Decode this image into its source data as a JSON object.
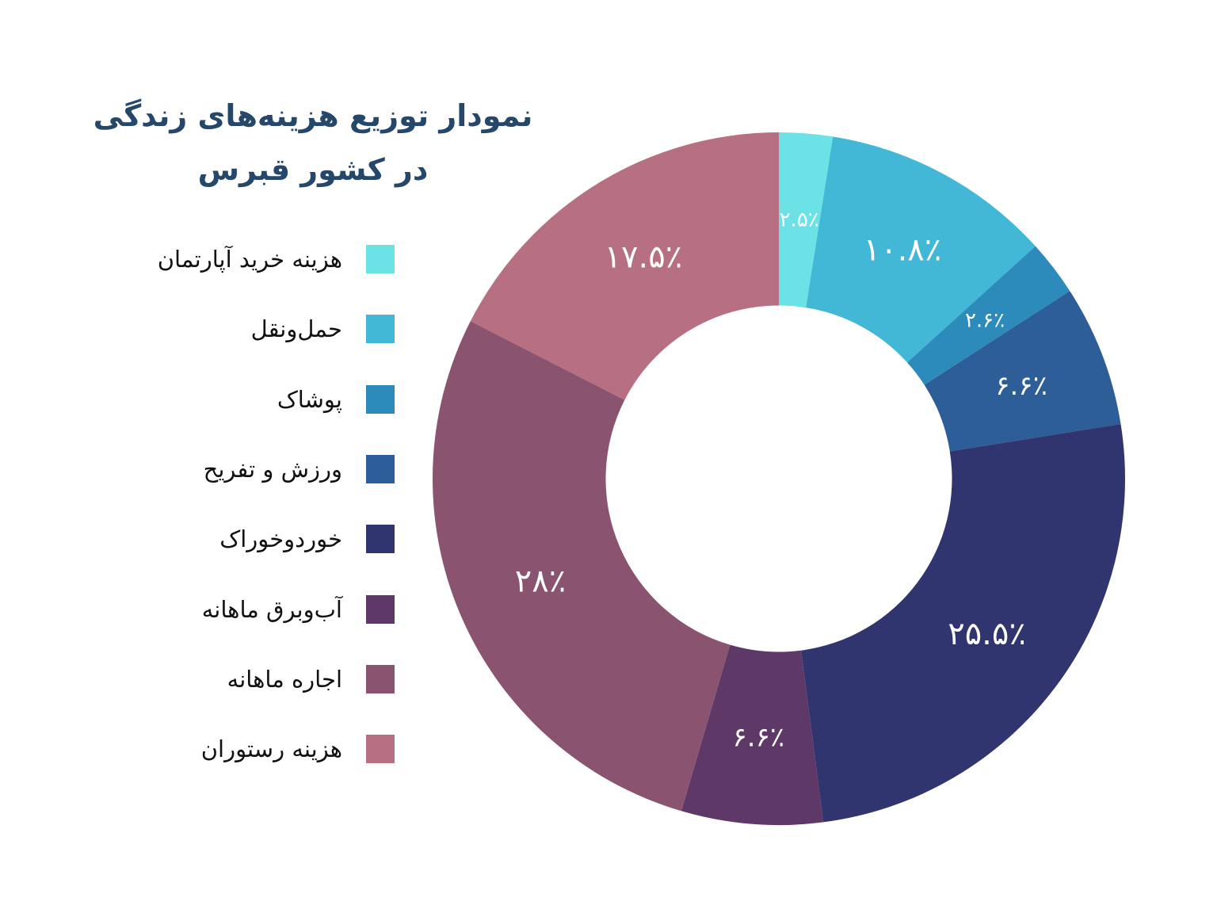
{
  "chart_data": {
    "type": "pie",
    "title": "نمودار توزیع هزینه‌های زندگی در کشور قبرس",
    "title_lines": [
      "نمودار توزیع هزینه‌های زندگی",
      "در کشور قبرس"
    ],
    "legend_position": "left",
    "categories": [
      "هزینه خرید آپارتمان",
      "حمل‌ونقل",
      "پوشاک",
      "ورزش و تفریح",
      "خوردوخوراک",
      "آب‌وبرق ماهانه",
      "اجاره ماهانه",
      "هزینه رستوران"
    ],
    "values": [
      2.5,
      10.8,
      2.6,
      6.6,
      25.5,
      6.6,
      28,
      17.5
    ],
    "value_labels": [
      "۲.۵٪",
      "۱۰.۸٪",
      "۲.۶٪",
      "۶.۶٪",
      "۲۵.۵٪",
      "۶.۶٪",
      "۲۸٪",
      "۱۷.۵٪"
    ],
    "colors": [
      "#6ce2e7",
      "#42b7d6",
      "#2d8bbb",
      "#2e5e97",
      "#31356f",
      "#5e3866",
      "#8a5471",
      "#b76f82"
    ],
    "inner_radius_ratio": 0.5,
    "start_angle_deg": 0,
    "direction": "clockwise"
  }
}
